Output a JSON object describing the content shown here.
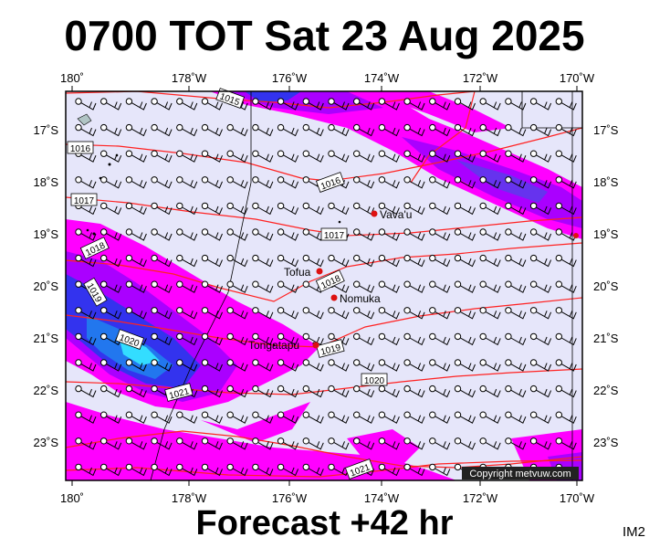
{
  "header": {
    "title": "0700 TOT Sat 23 Aug 2025"
  },
  "footer": {
    "forecast": "Forecast +42 hr",
    "tag": "IM2"
  },
  "map": {
    "lon_labels": [
      "180˚",
      "178˚W",
      "176˚W",
      "174˚W",
      "172˚W",
      "170˚W"
    ],
    "lat_labels": [
      "17˚S",
      "18˚S",
      "19˚S",
      "20˚S",
      "21˚S",
      "22˚S",
      "23˚S"
    ],
    "isobars": [
      "1015",
      "1016",
      "1016",
      "1017",
      "1017",
      "1018",
      "1018",
      "1019",
      "1020",
      "1019",
      "1020",
      "1021",
      "1021"
    ],
    "places": [
      {
        "name": "Vava'u",
        "color": "#dd1111"
      },
      {
        "name": "Tofua",
        "color": "#dd1111"
      },
      {
        "name": "Nomuka",
        "color": "#dd1111"
      },
      {
        "name": "Tongatapu",
        "color": "#dd1111"
      }
    ],
    "copyright": "Copyright metvuw.com",
    "colors": {
      "background": "#e6e6fa",
      "rain_light": "#ff00ff",
      "rain_mid": "#aa00ff",
      "rain_heavy": "#3333ee",
      "rain_max": "#33ddff",
      "isobar": "#ff2222",
      "coast": "#000000"
    }
  }
}
